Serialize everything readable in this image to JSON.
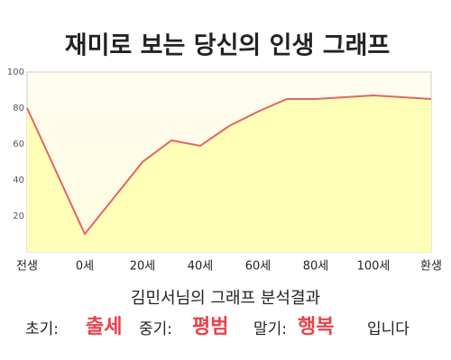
{
  "chart_data": {
    "type": "area",
    "title": "재미로 보는 당신의 인생 그래프",
    "x": [
      -20,
      0,
      20,
      30,
      40,
      50,
      60,
      70,
      80,
      90,
      100,
      110,
      120
    ],
    "values": [
      80,
      10,
      50,
      62,
      59,
      70,
      78,
      85,
      85,
      86,
      87,
      86,
      85
    ],
    "color": "#e06666",
    "fill_color": "#ffffb8",
    "xlim": [
      -20,
      120
    ],
    "xticks": [
      {
        "value": -20,
        "label": "전생"
      },
      {
        "value": 0,
        "label": "0세"
      },
      {
        "value": 20,
        "label": "20세"
      },
      {
        "value": 40,
        "label": "40세"
      },
      {
        "value": 60,
        "label": "60세"
      },
      {
        "value": 80,
        "label": "80세"
      },
      {
        "value": 100,
        "label": "100세"
      },
      {
        "value": 120,
        "label": "환생"
      }
    ],
    "ylim": [
      0,
      100
    ],
    "yticks": [
      20,
      40,
      60,
      80,
      100
    ],
    "grid": false
  },
  "result": {
    "heading": "김민서님의 그래프 분석결과",
    "items": [
      {
        "label": "초기:",
        "value": "출세"
      },
      {
        "label": "중기:",
        "value": "평범"
      },
      {
        "label": "말기:",
        "value": "행복"
      }
    ],
    "ending": "입니다"
  }
}
